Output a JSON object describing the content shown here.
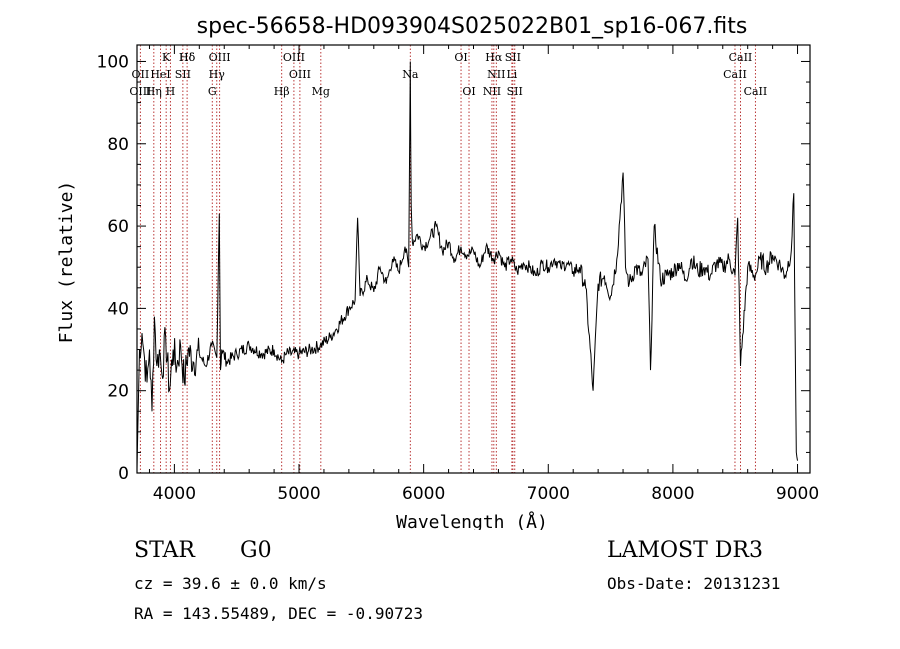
{
  "chart_data": {
    "type": "line",
    "title": "spec-56658-HD093904S025022B01_sp16-067.fits",
    "xlabel": "Wavelength (Å)",
    "ylabel": "Flux (relative)",
    "xlim": [
      3700,
      9100
    ],
    "ylim": [
      0,
      104
    ],
    "x_ticks": [
      4000,
      5000,
      6000,
      7000,
      8000,
      9000
    ],
    "y_ticks": [
      0,
      20,
      40,
      60,
      80,
      100
    ],
    "grid": false,
    "series": [
      {
        "x": [
          3700,
          3720,
          3740,
          3760,
          3780,
          3800,
          3820,
          3840,
          3860,
          3880,
          3900,
          3930,
          3960,
          3990,
          4020,
          4050,
          4080,
          4110,
          4150,
          4200,
          4250,
          4300,
          4340,
          4360,
          4370,
          4380,
          4420,
          4500,
          4600,
          4700,
          4800,
          4860,
          4900,
          5000,
          5100,
          5170,
          5250,
          5300,
          5400,
          5450,
          5470,
          5490,
          5550,
          5600,
          5650,
          5700,
          5750,
          5800,
          5850,
          5880,
          5893,
          5900,
          5910,
          5950,
          6000,
          6050,
          6100,
          6150,
          6200,
          6250,
          6300,
          6350,
          6400,
          6450,
          6500,
          6563,
          6600,
          6650,
          6700,
          6750,
          6800,
          6850,
          6900,
          6950,
          7000,
          7050,
          7100,
          7150,
          7200,
          7250,
          7300,
          7360,
          7400,
          7450,
          7500,
          7550,
          7600,
          7620,
          7650,
          7700,
          7750,
          7800,
          7820,
          7850,
          7900,
          7950,
          8000,
          8050,
          8100,
          8150,
          8200,
          8250,
          8300,
          8350,
          8400,
          8450,
          8498,
          8520,
          8542,
          8600,
          8662,
          8700,
          8750,
          8800,
          8850,
          8900,
          8950,
          8970,
          8990,
          9000
        ],
        "y": [
          1,
          30,
          34,
          28,
          22,
          30,
          15,
          38,
          26,
          30,
          24,
          33,
          20,
          30,
          26,
          31,
          22,
          30,
          27,
          29,
          26,
          31,
          28,
          63,
          25,
          30,
          27,
          29,
          31,
          29,
          30,
          27,
          29,
          29,
          30,
          31,
          33,
          35,
          40,
          42,
          62,
          43,
          47,
          44,
          50,
          46,
          52,
          49,
          55,
          50,
          100,
          65,
          56,
          58,
          55,
          57,
          60,
          54,
          56,
          52,
          55,
          53,
          54,
          50,
          55,
          52,
          54,
          50,
          52,
          49,
          51,
          50,
          48,
          51,
          50,
          52,
          50,
          51,
          49,
          50,
          45,
          20,
          46,
          48,
          43,
          52,
          73,
          50,
          46,
          50,
          48,
          52,
          25,
          60,
          47,
          48,
          49,
          51,
          47,
          52,
          49,
          50,
          48,
          51,
          50,
          52,
          48,
          62,
          26,
          50,
          48,
          52,
          50,
          53,
          51,
          48,
          54,
          68,
          5,
          3
        ]
      }
    ],
    "annotations": [
      {
        "label": "Hδ",
        "row": 1,
        "x": 4102
      },
      {
        "label": "K",
        "row": 1,
        "x": 3934
      },
      {
        "label": "Hδ",
        "row": 1,
        "x": 4102
      },
      {
        "label": "OIII",
        "row": 1,
        "x": 4363
      },
      {
        "label": "OIII",
        "row": 1,
        "x": 4959
      },
      {
        "label": "OI",
        "row": 1,
        "x": 6300
      },
      {
        "label": "Hα",
        "row": 1,
        "x": 6563
      },
      {
        "label": "SII",
        "row": 1,
        "x": 6716
      },
      {
        "label": "CaII",
        "row": 1,
        "x": 8542
      },
      {
        "label": "OII",
        "row": 2,
        "x": 3727
      },
      {
        "label": "HeI",
        "row": 2,
        "x": 3889
      },
      {
        "label": "SII",
        "row": 2,
        "x": 4068
      },
      {
        "label": "Hγ",
        "row": 2,
        "x": 4340
      },
      {
        "label": "OIII",
        "row": 2,
        "x": 5007
      },
      {
        "label": "Na",
        "row": 2,
        "x": 5893
      },
      {
        "label": "NII",
        "row": 2,
        "x": 6583
      },
      {
        "label": "Li",
        "row": 2,
        "x": 6708
      },
      {
        "label": "CaII",
        "row": 2,
        "x": 8498
      },
      {
        "label": "OIII",
        "row": 3,
        "x": 3727
      },
      {
        "label": "Hη",
        "row": 3,
        "x": 3835
      },
      {
        "label": "H",
        "row": 3,
        "x": 3968
      },
      {
        "label": "G",
        "row": 3,
        "x": 4304
      },
      {
        "label": "Hβ",
        "row": 3,
        "x": 4861
      },
      {
        "label": "Mg",
        "row": 3,
        "x": 5175
      },
      {
        "label": "OI",
        "row": 3,
        "x": 6364
      },
      {
        "label": "NII",
        "row": 3,
        "x": 6548
      },
      {
        "label": "SII",
        "row": 3,
        "x": 6731
      },
      {
        "label": "CaII",
        "row": 3,
        "x": 8662
      }
    ],
    "line_markers": [
      3727,
      3835,
      3889,
      3934,
      3968,
      4102,
      4068,
      4304,
      4340,
      4363,
      4861,
      4959,
      5007,
      5175,
      5893,
      6300,
      6364,
      6548,
      6563,
      6583,
      6708,
      6716,
      6731,
      8498,
      8542,
      8662
    ],
    "marker_color": "#b22222"
  },
  "info": {
    "object_type": "STAR",
    "subclass": "G0",
    "survey": "LAMOST DR3",
    "cz": "cz = 39.6 ± 0.0 km/s",
    "obs_date": "Obs-Date: 20131231",
    "coords": "RA = 143.55489, DEC =  -0.90723"
  }
}
